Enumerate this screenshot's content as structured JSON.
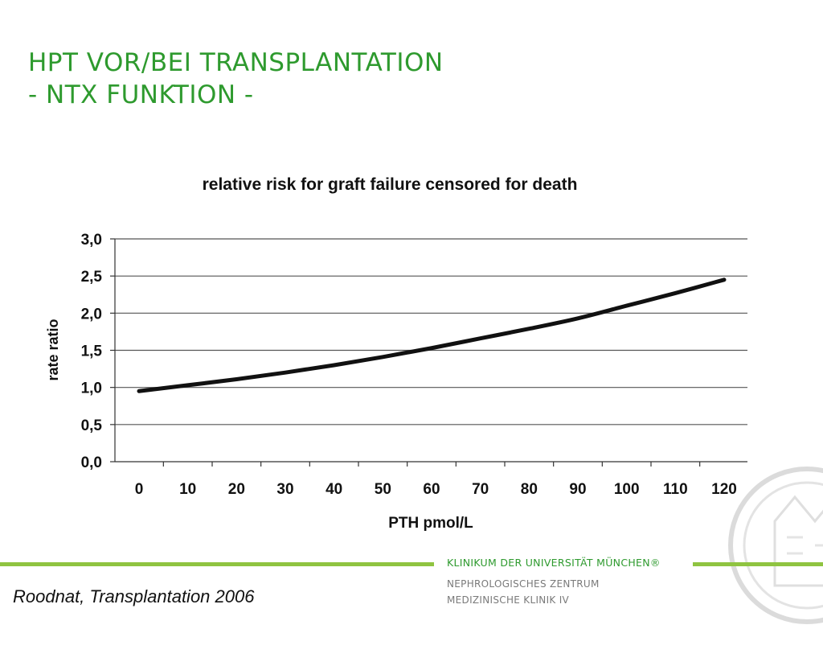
{
  "slide": {
    "title_line1": "HPT VOR/BEI TRANSPLANTATION",
    "title_line2": "- NTX FUNKTION -",
    "citation": "Roodnat, Transplantation 2006"
  },
  "footer": {
    "institution": "KLINIKUM DER UNIVERSITÄT MÜNCHEN®",
    "department1": "NEPHROLOGISCHES ZENTRUM",
    "department2": "MEDIZINISCHE KLINIK IV"
  },
  "colors": {
    "title": "#2e9a2e",
    "accent_line": "#8fc441",
    "curve": "#111111",
    "grid": "#555555"
  },
  "chart_data": {
    "type": "line",
    "title": "relative risk for graft failure censored for death",
    "xlabel": "PTH pmol/L",
    "ylabel": "rate ratio",
    "xlim": [
      0,
      120
    ],
    "ylim": [
      0,
      3
    ],
    "x_ticks": [
      0,
      10,
      20,
      30,
      40,
      50,
      60,
      70,
      80,
      90,
      100,
      110,
      120
    ],
    "y_ticks": [
      0,
      0.5,
      1.0,
      1.5,
      2.0,
      2.5,
      3.0
    ],
    "y_tick_labels": [
      "0,0",
      "0,5",
      "1,0",
      "1,5",
      "2,0",
      "2,5",
      "3,0"
    ],
    "x": [
      0,
      10,
      20,
      30,
      40,
      50,
      60,
      70,
      80,
      90,
      100,
      110,
      120
    ],
    "y": [
      0.95,
      1.03,
      1.11,
      1.2,
      1.3,
      1.41,
      1.53,
      1.66,
      1.79,
      1.93,
      2.1,
      2.27,
      2.45
    ],
    "grid": true,
    "legend": "none"
  }
}
